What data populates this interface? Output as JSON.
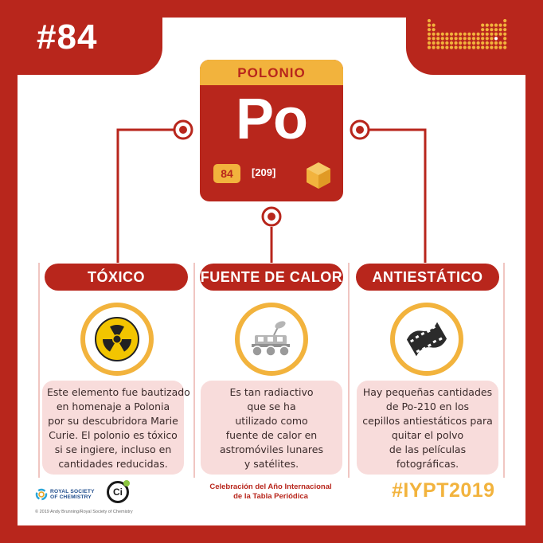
{
  "number": "#84",
  "element": {
    "name": "POLONIO",
    "symbol": "Po",
    "atomic_number": "84",
    "atomic_mass": "[209]"
  },
  "columns": [
    {
      "title": "TÓXICO",
      "icon": "radiation-icon",
      "lines": [
        "Este elemento fue bautizado",
        "en homenaje a Polonia",
        "por su descubridora Marie",
        "Curie. El polonio es tóxico",
        "si se ingiere, incluso en",
        "cantidades reducidas."
      ]
    },
    {
      "title": "FUENTE DE CALOR",
      "icon": "rover-icon",
      "lines": [
        "Es tan radiactivo",
        "que se ha",
        "utilizado como",
        "fuente de calor en",
        "astromóviles lunares",
        "y satélites."
      ]
    },
    {
      "title": "ANTIESTÁTICO",
      "icon": "film-strip-icon",
      "lines": [
        "Hay pequeñas cantidades",
        "de Po-210 en los",
        "cepillos antiestáticos para",
        "quitar el polvo",
        "de las películas",
        "fotográficas."
      ]
    }
  ],
  "footer": {
    "rsc_line1": "ROYAL SOCIETY",
    "rsc_line2": "OF CHEMISTRY",
    "ci_label": "Ci",
    "copyright": "© 2019 Andy Brunning/Royal Society of Chemistry",
    "celebration_line1": "Celebración del Año Internacional",
    "celebration_line2": "de la Tabla Periódica",
    "hashtag": "#IYPT2019"
  },
  "colors": {
    "red": "#b8261c",
    "yellow": "#f2b33d",
    "pink": "#f8dcdb"
  }
}
